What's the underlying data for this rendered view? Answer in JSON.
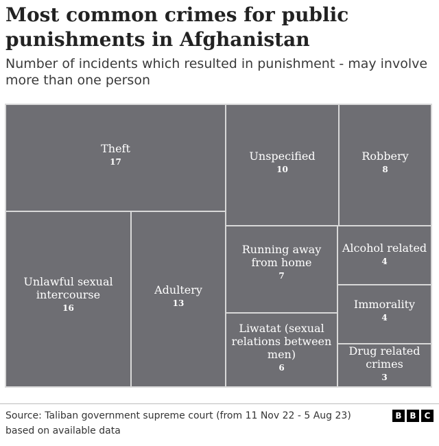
{
  "title": "Most common crimes for public punishments in Afghanistan",
  "subtitle": "Number of incidents which resulted in punishment - may involve more than one person",
  "chart_data": {
    "type": "treemap",
    "title": "Most common crimes for public punishments in Afghanistan",
    "subtitle": "Number of incidents which resulted in punishment - may involve more than one person",
    "tile_color": "#6e6e73",
    "border_color": "#d9d9d9",
    "categories": [
      "Theft",
      "Unlawful sexual intercourse",
      "Adultery",
      "Unspecified",
      "Robbery",
      "Running away from home",
      "Alcohol related",
      "Immorality",
      "Liwatat (sexual relations between men)",
      "Drug related crimes"
    ],
    "values": [
      17,
      16,
      13,
      10,
      8,
      7,
      4,
      4,
      6,
      3
    ],
    "label_lines": [
      [
        "Theft"
      ],
      [
        "Unlawful sexual",
        "intercourse"
      ],
      [
        "Adultery"
      ],
      [
        "Unspecified"
      ],
      [
        "Robbery"
      ],
      [
        "Running away",
        "from home"
      ],
      [
        "Alcohol related"
      ],
      [
        "Immorality"
      ],
      [
        "Liwatat (sexual",
        "relations between",
        "men)"
      ],
      [
        "Drug related",
        "crimes"
      ]
    ]
  },
  "footer": {
    "source_line1": "Source: Taliban government supreme court (from 11 Nov 22 - 5 Aug 23)",
    "source_line2": "based on available data",
    "logo": [
      "B",
      "B",
      "C"
    ]
  }
}
